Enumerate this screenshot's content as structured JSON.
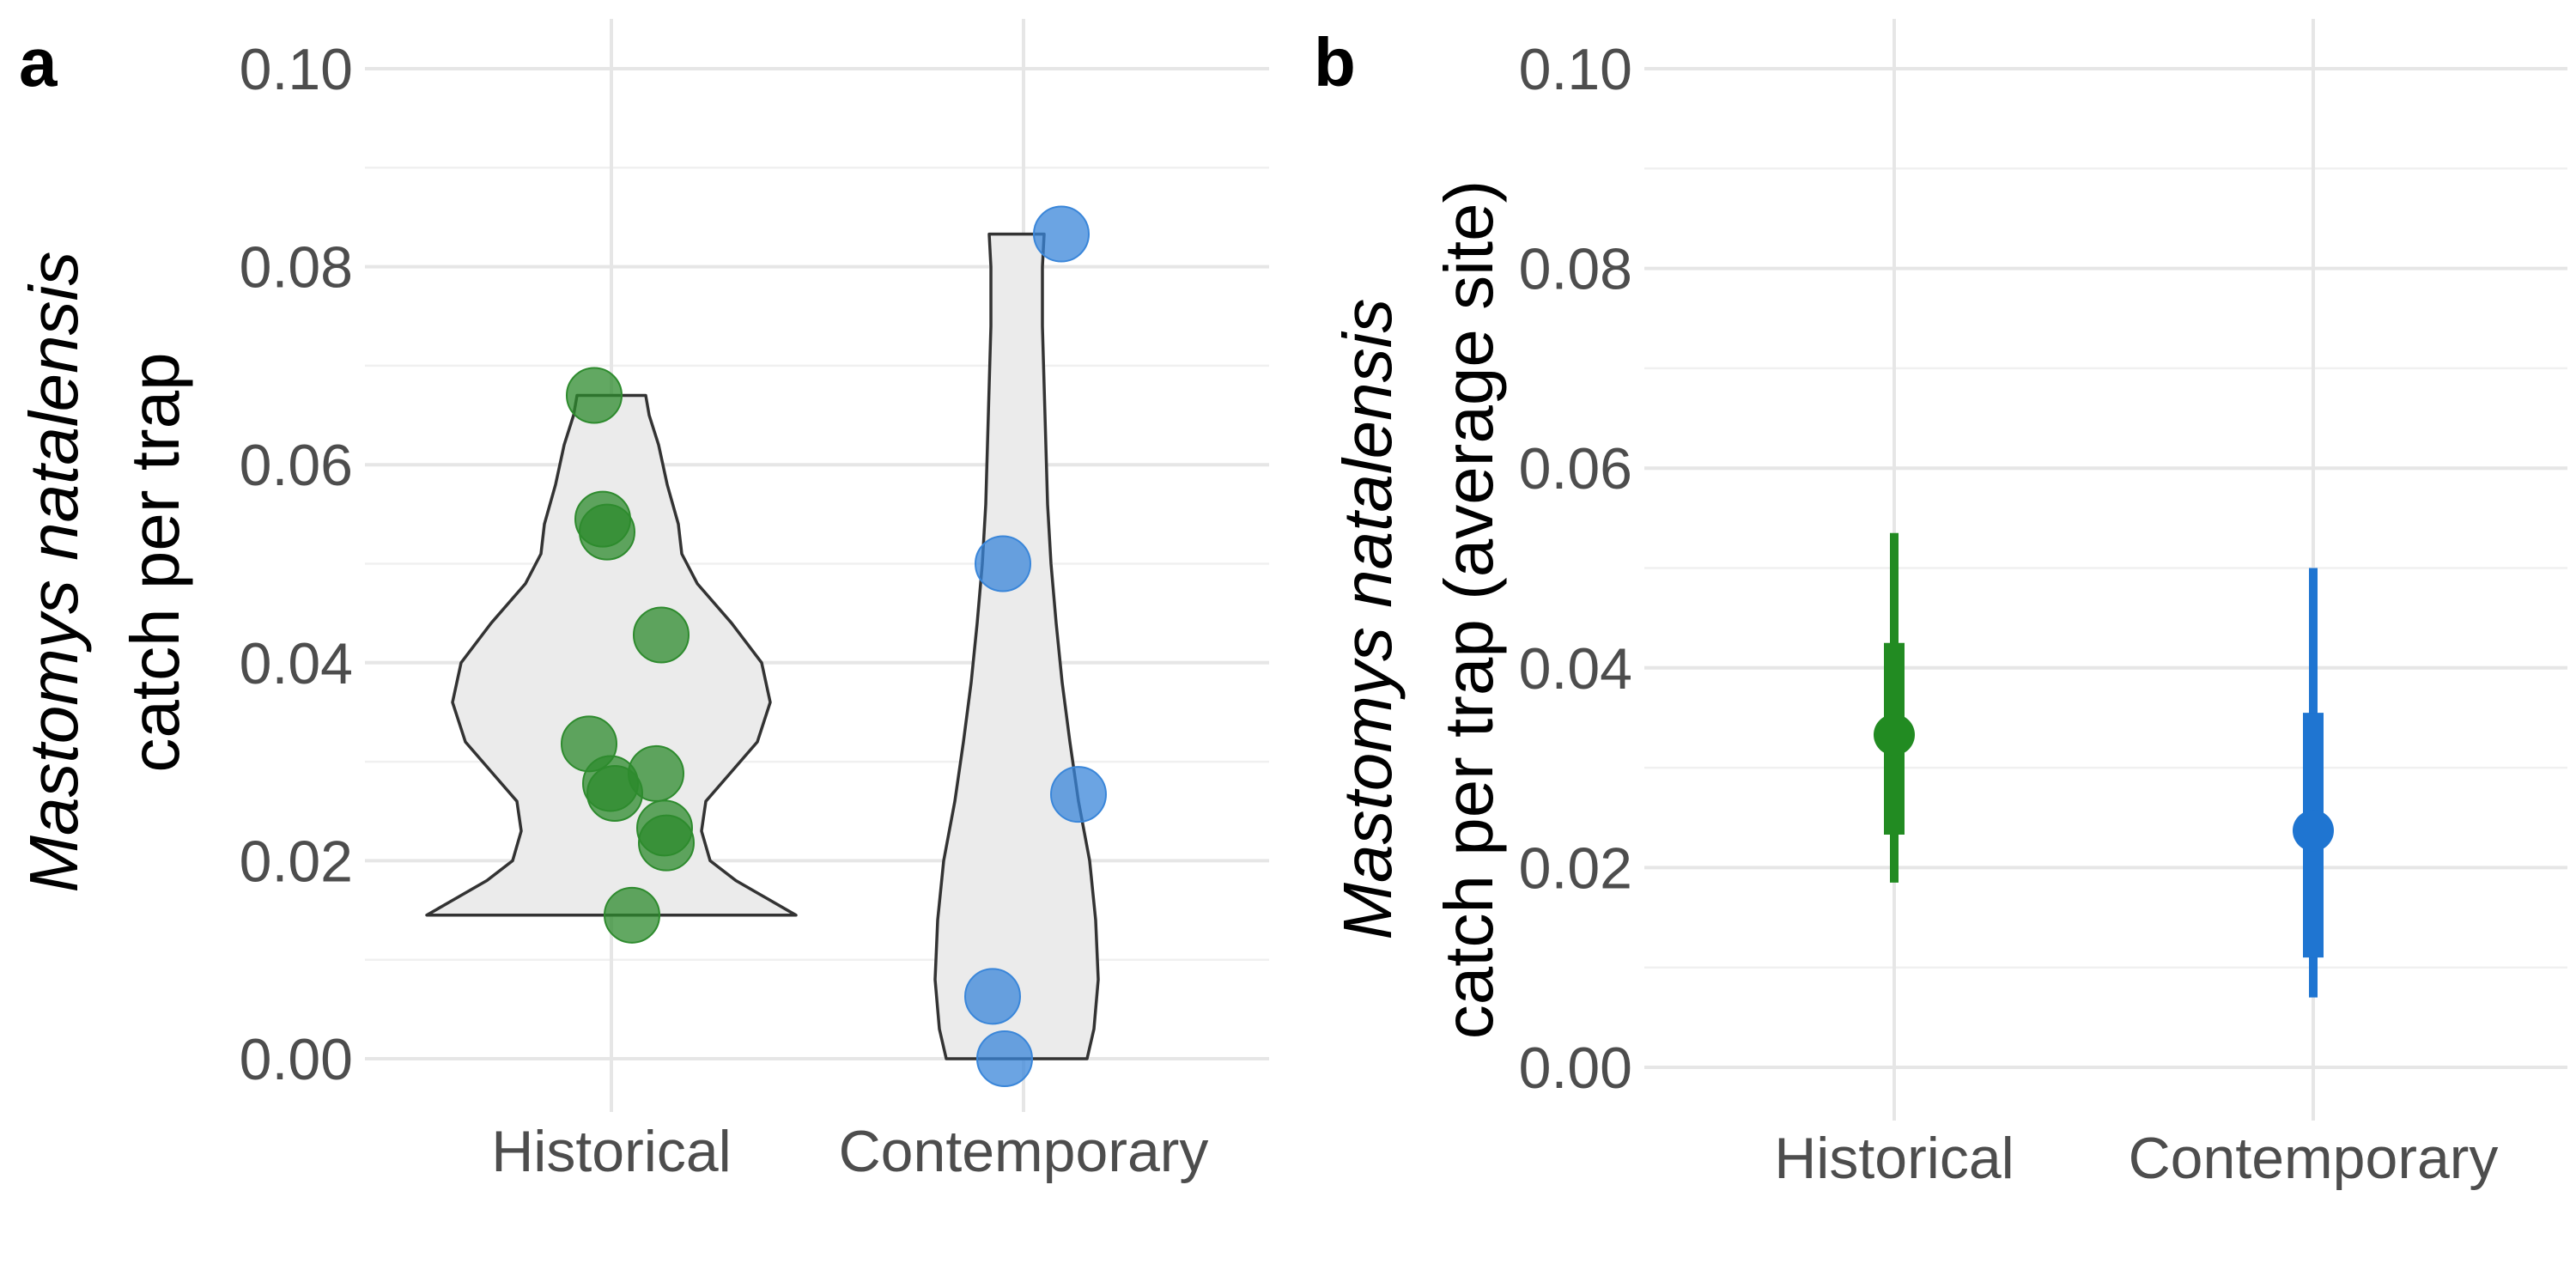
{
  "chart_data": [
    {
      "type": "violin",
      "panel_label": "a",
      "categories": [
        "Historical",
        "Contemporary"
      ],
      "ylabel_italic": "Mastomys natalensis",
      "ylabel": "catch per trap",
      "ylim": [
        0,
        0.1
      ],
      "yticks": [
        "0.00",
        "0.02",
        "0.04",
        "0.06",
        "0.08",
        "0.10"
      ],
      "grid": true,
      "colors": {
        "Historical": "#2e8b2e",
        "Contemporary": "#3a86d9",
        "violin_fill": "#ebebeb",
        "violin_stroke": "#333333"
      },
      "series": [
        {
          "category": "Historical",
          "values": [
            0.067,
            0.0545,
            0.0532,
            0.0428,
            0.0318,
            0.0288,
            0.0278,
            0.0268,
            0.0233,
            0.0218,
            0.0145
          ]
        },
        {
          "category": "Contemporary",
          "values": [
            0.0833,
            0.05,
            0.0267,
            0.0063,
            0.0
          ]
        }
      ]
    },
    {
      "type": "pointrange",
      "panel_label": "b",
      "categories": [
        "Historical",
        "Contemporary"
      ],
      "ylabel_italic": "Mastomys natalensis",
      "ylabel": "catch per trap (average site)",
      "ylim": [
        0,
        0.1
      ],
      "yticks": [
        "0.00",
        "0.02",
        "0.04",
        "0.06",
        "0.08",
        "0.10"
      ],
      "grid": true,
      "colors": {
        "Historical": "#228b22",
        "Contemporary": "#1f75d1"
      },
      "series": [
        {
          "category": "Historical",
          "estimate": 0.0333,
          "inner": [
            0.0233,
            0.0425
          ],
          "outer": [
            0.0185,
            0.0535
          ]
        },
        {
          "category": "Contemporary",
          "estimate": 0.0237,
          "inner": [
            0.011,
            0.0355
          ],
          "outer": [
            0.007,
            0.05
          ]
        }
      ]
    }
  ]
}
